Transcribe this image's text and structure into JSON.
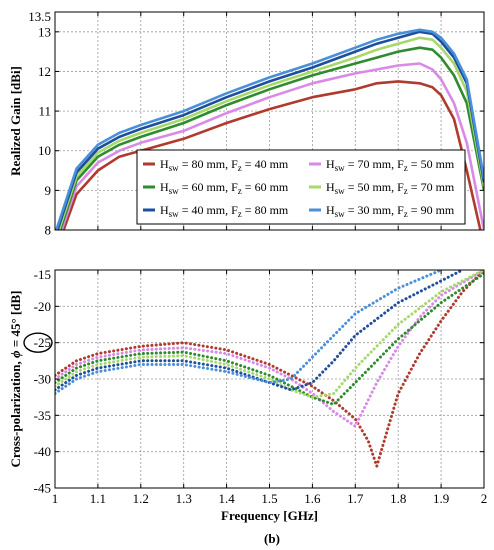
{
  "chart_data": [
    {
      "type": "line",
      "ylabel": "Realized Gain [dBi]",
      "xlim": [
        1,
        2
      ],
      "ylim": [
        8,
        13.5
      ],
      "xticks": [
        1,
        1.1,
        1.2,
        1.3,
        1.4,
        1.5,
        1.6,
        1.7,
        1.8,
        1.9,
        2
      ],
      "xtick_labels": [
        "1",
        "1.1",
        "1.2",
        "1.3",
        "1.4",
        "1.5",
        "1.6",
        "1.7",
        "1.8",
        "1.9",
        "2"
      ],
      "yticks": [
        8,
        9,
        10,
        11,
        12,
        13,
        13.5
      ],
      "ytick_labels": [
        "8",
        "9",
        "10",
        "11",
        "12",
        "13",
        "13.5"
      ],
      "grid": true,
      "legend_position": "bottom-right",
      "legend_columns": 2,
      "x": [
        1.0,
        1.05,
        1.1,
        1.15,
        1.2,
        1.3,
        1.4,
        1.5,
        1.6,
        1.7,
        1.75,
        1.8,
        1.85,
        1.88,
        1.9,
        1.93,
        1.96,
        2.0
      ],
      "series": [
        {
          "name": "H_sw = 80 mm, F_z = 40 mm",
          "legend_main_1": "H",
          "legend_sub_1": "sw",
          "legend_mid": " = 80 mm, F",
          "legend_sub_2": "z",
          "legend_end": " = 40 mm",
          "color": "#b03a2e",
          "style": "solid",
          "values": [
            7.4,
            8.9,
            9.5,
            9.85,
            10.0,
            10.3,
            10.7,
            11.05,
            11.35,
            11.55,
            11.7,
            11.75,
            11.7,
            11.6,
            11.4,
            10.8,
            9.5,
            7.6
          ]
        },
        {
          "name": "H_sw = 70 mm, F_z = 50 mm",
          "legend_main_1": "H",
          "legend_sub_1": "sw",
          "legend_mid": " = 70 mm, F",
          "legend_sub_2": "z",
          "legend_end": " = 50 mm",
          "color": "#d98ae6",
          "style": "solid",
          "values": [
            7.5,
            9.1,
            9.7,
            10.0,
            10.2,
            10.5,
            10.95,
            11.35,
            11.7,
            11.95,
            12.05,
            12.15,
            12.2,
            12.05,
            11.8,
            11.2,
            10.2,
            8.0
          ]
        },
        {
          "name": "H_sw = 60 mm, F_z = 60 mm",
          "legend_main_1": "H",
          "legend_sub_1": "sw",
          "legend_mid": " = 60 mm, F",
          "legend_sub_2": "z",
          "legend_end": " = 60 mm",
          "color": "#2e8b2e",
          "style": "solid",
          "values": [
            7.6,
            9.25,
            9.85,
            10.15,
            10.35,
            10.7,
            11.15,
            11.55,
            11.9,
            12.2,
            12.35,
            12.5,
            12.6,
            12.55,
            12.35,
            11.9,
            11.2,
            9.0
          ]
        },
        {
          "name": "H_sw = 50 mm, F_z = 70 mm",
          "legend_main_1": "H",
          "legend_sub_1": "sw",
          "legend_mid": " = 50 mm, F",
          "legend_sub_2": "z",
          "legend_end": " = 70 mm",
          "color": "#a6d96a",
          "style": "solid",
          "values": [
            7.7,
            9.35,
            9.95,
            10.25,
            10.45,
            10.8,
            11.25,
            11.65,
            12.0,
            12.35,
            12.55,
            12.7,
            12.85,
            12.8,
            12.6,
            12.2,
            11.5,
            9.1
          ]
        },
        {
          "name": "H_sw = 40 mm, F_z = 80 mm",
          "legend_main_1": "H",
          "legend_sub_1": "sw",
          "legend_mid": " = 40 mm, F",
          "legend_sub_2": "z",
          "legend_end": " = 80 mm",
          "color": "#1f4e9c",
          "style": "solid",
          "values": [
            7.8,
            9.45,
            10.05,
            10.35,
            10.55,
            10.9,
            11.35,
            11.75,
            12.1,
            12.5,
            12.7,
            12.85,
            13.0,
            12.95,
            12.75,
            12.35,
            11.7,
            9.2
          ]
        },
        {
          "name": "H_sw = 30 mm, F_z = 90 mm",
          "legend_main_1": "H",
          "legend_sub_1": "sw",
          "legend_mid": " = 30 mm, F",
          "legend_sub_2": "z",
          "legend_end": " = 90 mm",
          "color": "#4a90d9",
          "style": "solid",
          "values": [
            7.9,
            9.55,
            10.15,
            10.45,
            10.65,
            11.0,
            11.45,
            11.85,
            12.2,
            12.6,
            12.8,
            12.95,
            13.05,
            13.0,
            12.85,
            12.45,
            11.8,
            9.3
          ]
        }
      ]
    },
    {
      "type": "line",
      "xlabel": "Frequency [GHz]",
      "ylabel_main": "Cross-polarization, ",
      "ylabel_symbol": "ϕ",
      "ylabel_end": " = 45° [dB]",
      "xlim": [
        1,
        2
      ],
      "ylim": [
        -45,
        -15
      ],
      "xticks": [
        1,
        1.1,
        1.2,
        1.3,
        1.4,
        1.5,
        1.6,
        1.7,
        1.8,
        1.9,
        2
      ],
      "xtick_labels": [
        "1",
        "1.1",
        "1.2",
        "1.3",
        "1.4",
        "1.5",
        "1.6",
        "1.7",
        "1.8",
        "1.9",
        "2"
      ],
      "yticks": [
        -45,
        -40,
        -35,
        -30,
        -25,
        -20,
        -15
      ],
      "ytick_labels": [
        "-45",
        "-40",
        "-35",
        "-30",
        "-25",
        "-20",
        "-15"
      ],
      "circled_tick": "-25",
      "grid": true,
      "series": [
        {
          "name": "H_sw = 80 mm, F_z = 40 mm",
          "color": "#b03a2e",
          "style": "dotted",
          "x": [
            1.0,
            1.05,
            1.1,
            1.2,
            1.3,
            1.4,
            1.5,
            1.55,
            1.6,
            1.65,
            1.7,
            1.73,
            1.75,
            1.77,
            1.8,
            1.85,
            1.9,
            1.95,
            2.0
          ],
          "values": [
            -29.5,
            -27.5,
            -26.5,
            -25.5,
            -25.0,
            -26.0,
            -28.0,
            -29.5,
            -31.0,
            -33.0,
            -35.5,
            -38.5,
            -42.0,
            -38.0,
            -32.0,
            -26.5,
            -22.0,
            -18.0,
            -15.0
          ]
        },
        {
          "name": "H_sw = 70 mm, F_z = 50 mm",
          "color": "#d98ae6",
          "style": "dotted",
          "x": [
            1.0,
            1.05,
            1.1,
            1.2,
            1.3,
            1.4,
            1.5,
            1.55,
            1.6,
            1.65,
            1.7,
            1.75,
            1.8,
            1.85,
            1.9,
            2.0
          ],
          "values": [
            -30.0,
            -28.0,
            -27.0,
            -26.0,
            -25.7,
            -26.5,
            -28.5,
            -30.0,
            -32.0,
            -34.5,
            -36.5,
            -30.5,
            -25.5,
            -21.5,
            -18.5,
            -15.0
          ]
        },
        {
          "name": "H_sw = 60 mm, F_z = 60 mm",
          "color": "#2e8b2e",
          "style": "dotted",
          "x": [
            1.0,
            1.05,
            1.1,
            1.2,
            1.3,
            1.4,
            1.5,
            1.55,
            1.6,
            1.65,
            1.7,
            1.8,
            1.9,
            2.0
          ],
          "values": [
            -30.5,
            -28.5,
            -27.5,
            -26.5,
            -26.3,
            -27.5,
            -29.5,
            -31.0,
            -32.5,
            -33.5,
            -30.5,
            -24.5,
            -19.5,
            -15.5
          ]
        },
        {
          "name": "H_sw = 50 mm, F_z = 70 mm",
          "color": "#a6d96a",
          "style": "dotted",
          "x": [
            1.0,
            1.05,
            1.1,
            1.2,
            1.3,
            1.4,
            1.5,
            1.55,
            1.6,
            1.65,
            1.7,
            1.8,
            1.9,
            2.0
          ],
          "values": [
            -31.0,
            -29.0,
            -28.0,
            -27.0,
            -26.8,
            -28.0,
            -30.0,
            -31.5,
            -32.5,
            -32.0,
            -28.5,
            -22.5,
            -18.0,
            -15.0
          ]
        },
        {
          "name": "H_sw = 40 mm, F_z = 80 mm",
          "color": "#1f4e9c",
          "style": "dotted",
          "x": [
            1.0,
            1.05,
            1.1,
            1.2,
            1.3,
            1.4,
            1.5,
            1.55,
            1.6,
            1.65,
            1.7,
            1.8,
            1.9,
            1.95
          ],
          "values": [
            -31.5,
            -29.5,
            -28.5,
            -27.5,
            -27.5,
            -28.5,
            -30.5,
            -31.5,
            -30.5,
            -27.5,
            -24.0,
            -19.5,
            -16.5,
            -15.0
          ]
        },
        {
          "name": "H_sw = 30 mm, F_z = 90 mm",
          "color": "#4a90d9",
          "style": "dotted",
          "x": [
            1.0,
            1.05,
            1.1,
            1.2,
            1.3,
            1.4,
            1.5,
            1.55,
            1.6,
            1.65,
            1.7,
            1.8,
            1.9
          ],
          "values": [
            -32.0,
            -30.0,
            -29.0,
            -28.0,
            -28.0,
            -29.0,
            -30.5,
            -30.0,
            -27.0,
            -24.0,
            -21.0,
            -17.5,
            -15.0
          ]
        }
      ]
    }
  ],
  "caption": "(b)"
}
